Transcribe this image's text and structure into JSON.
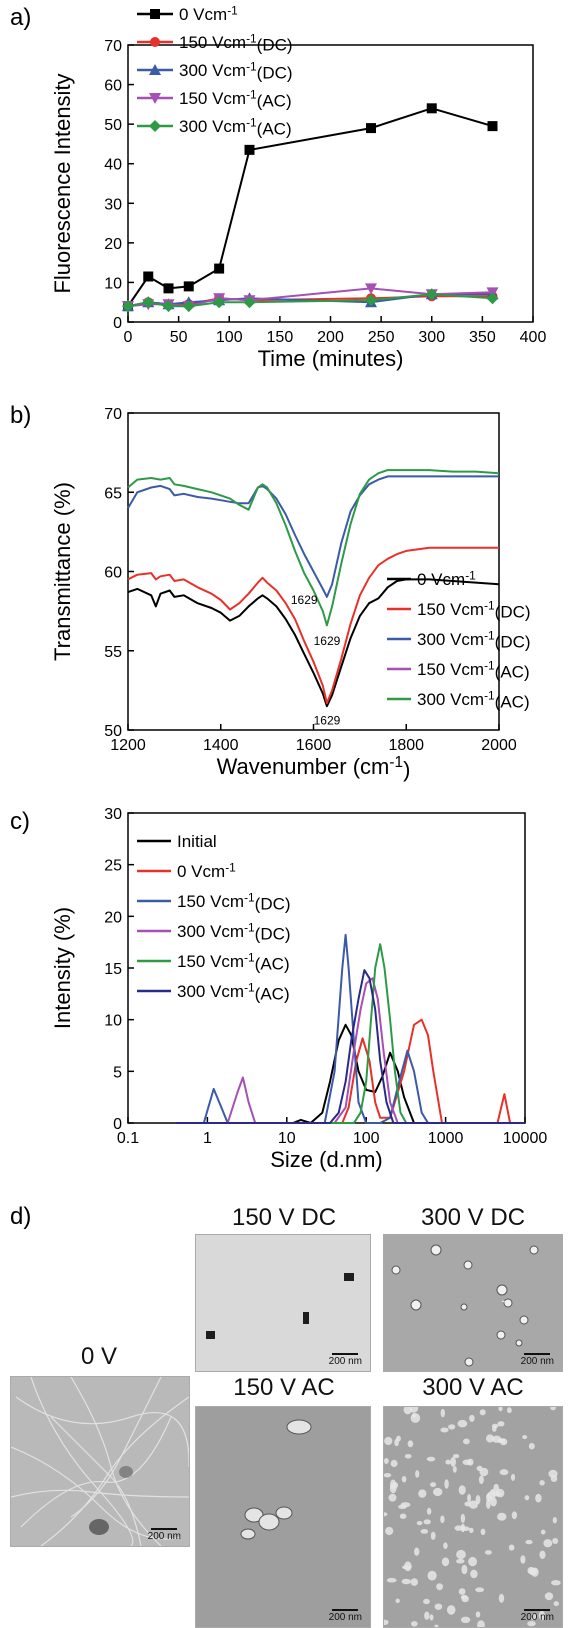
{
  "panel_labels": [
    "a)",
    "b)",
    "c)",
    "d)"
  ],
  "chart_data": [
    {
      "type": "line",
      "xlabel": "Time (minutes)",
      "ylabel": "Fluorescence Intensity",
      "xlim": [
        0,
        400
      ],
      "ylim": [
        0,
        70
      ],
      "xticks": [
        "0",
        "50",
        "100",
        "150",
        "200",
        "250",
        "300",
        "350",
        "400"
      ],
      "yticks": [
        "0",
        "10",
        "20",
        "30",
        "40",
        "50",
        "60",
        "70"
      ],
      "legend_position": "top-left",
      "series": [
        {
          "name": "0 Vcm-1",
          "color": "#000000",
          "marker": "square",
          "x": [
            0,
            20,
            40,
            60,
            90,
            120,
            240,
            300,
            360
          ],
          "y": [
            4,
            11.5,
            8.5,
            9,
            13.5,
            43.5,
            49,
            54,
            49.5
          ]
        },
        {
          "name": "150 Vcm-1(DC)",
          "color": "#e8312a",
          "marker": "circle",
          "x": [
            0,
            20,
            40,
            60,
            90,
            120,
            240,
            300,
            360
          ],
          "y": [
            4,
            5,
            4.5,
            4.5,
            6,
            5.5,
            6,
            6.5,
            6.5
          ]
        },
        {
          "name": "300 Vcm-1(DC)",
          "color": "#3b5aa8",
          "marker": "triangle-up",
          "x": [
            0,
            20,
            40,
            60,
            90,
            120,
            240,
            300,
            360
          ],
          "y": [
            4,
            5,
            4.5,
            5,
            5.5,
            6,
            5,
            7,
            7
          ]
        },
        {
          "name": "150 Vcm-1(AC)",
          "color": "#a64fb4",
          "marker": "triangle-down",
          "x": [
            0,
            20,
            40,
            60,
            90,
            120,
            240,
            300,
            360
          ],
          "y": [
            4,
            4.5,
            4.5,
            4,
            6,
            5.5,
            8.5,
            7,
            7.5
          ]
        },
        {
          "name": "300 Vcm-1(AC)",
          "color": "#2e9a46",
          "marker": "diamond",
          "x": [
            0,
            20,
            40,
            60,
            90,
            120,
            240,
            300,
            360
          ],
          "y": [
            4,
            5,
            4,
            4,
            5,
            5,
            5.5,
            7,
            6
          ]
        }
      ]
    },
    {
      "type": "line",
      "xlabel": "Wavenumber (cm-1)",
      "ylabel": "Transmittance (%)",
      "xlim": [
        1200,
        2000
      ],
      "ylim": [
        50,
        70
      ],
      "xticks": [
        "1200",
        "1400",
        "1600",
        "1800",
        "2000"
      ],
      "yticks": [
        "50",
        "55",
        "60",
        "65",
        "70"
      ],
      "legend_position": "bottom-right",
      "annotations": [
        {
          "text": "1629",
          "x": 1580,
          "y": 58.2
        },
        {
          "text": "1629",
          "x": 1629,
          "y": 55.6
        },
        {
          "text": "1629",
          "x": 1629,
          "y": 50.6
        }
      ],
      "series": [
        {
          "name": "0 Vcm-1",
          "color": "#000000",
          "x": [
            1200,
            1220,
            1250,
            1260,
            1270,
            1290,
            1300,
            1320,
            1350,
            1380,
            1400,
            1420,
            1440,
            1460,
            1480,
            1490,
            1500,
            1520,
            1540,
            1560,
            1580,
            1600,
            1620,
            1629,
            1640,
            1660,
            1680,
            1700,
            1720,
            1740,
            1760,
            1780,
            1800,
            1850,
            1900,
            1950,
            2000
          ],
          "y": [
            58.7,
            58.9,
            58.5,
            57.8,
            58.6,
            58.8,
            58.4,
            58.5,
            58.0,
            57.7,
            57.4,
            56.9,
            57.2,
            57.8,
            58.3,
            58.5,
            58.3,
            57.8,
            57.0,
            56.0,
            54.8,
            53.6,
            52.3,
            51.5,
            52.2,
            54.0,
            55.8,
            57.2,
            58.0,
            58.3,
            59.0,
            59.4,
            59.5,
            59.5,
            59.4,
            59.3,
            59.2
          ]
        },
        {
          "name": "150 Vcm-1(DC)",
          "color": "#e8312a",
          "x": [
            1200,
            1220,
            1250,
            1260,
            1270,
            1290,
            1300,
            1320,
            1350,
            1380,
            1400,
            1420,
            1440,
            1460,
            1480,
            1490,
            1500,
            1520,
            1540,
            1560,
            1580,
            1600,
            1620,
            1629,
            1640,
            1660,
            1680,
            1700,
            1720,
            1740,
            1760,
            1780,
            1800,
            1850,
            1900,
            1950,
            2000
          ],
          "y": [
            59.5,
            59.8,
            59.9,
            59.5,
            59.7,
            59.8,
            59.4,
            59.5,
            59.0,
            58.6,
            58.2,
            57.6,
            58.0,
            58.6,
            59.3,
            59.6,
            59.3,
            58.8,
            58.0,
            57.0,
            55.6,
            54.3,
            52.8,
            51.7,
            52.5,
            54.5,
            56.7,
            58.5,
            59.6,
            60.4,
            60.8,
            61.1,
            61.3,
            61.5,
            61.5,
            61.5,
            61.5
          ]
        },
        {
          "name": "300 Vcm-1(DC)",
          "color": "#3b5aa8",
          "x": [
            1200,
            1220,
            1250,
            1270,
            1290,
            1300,
            1320,
            1350,
            1380,
            1400,
            1420,
            1440,
            1460,
            1480,
            1490,
            1500,
            1520,
            1540,
            1560,
            1580,
            1600,
            1620,
            1629,
            1640,
            1660,
            1680,
            1700,
            1720,
            1740,
            1760,
            1800,
            1850,
            1900,
            1950,
            2000
          ],
          "y": [
            64.0,
            65.0,
            65.3,
            65.4,
            65.2,
            64.8,
            64.9,
            64.7,
            64.6,
            64.5,
            64.4,
            64.3,
            64.3,
            65.3,
            65.4,
            65.2,
            64.6,
            63.6,
            62.3,
            61.1,
            60.0,
            58.9,
            58.4,
            59.2,
            61.8,
            63.8,
            64.8,
            65.5,
            65.8,
            66.0,
            66.0,
            66.0,
            66.0,
            66.0,
            66.0
          ]
        },
        {
          "name": "150 Vcm-1(AC)",
          "color": "#a64fb4",
          "x": [],
          "y": []
        },
        {
          "name": "300 Vcm-1(AC)",
          "color": "#2e9a46",
          "x": [
            1200,
            1220,
            1250,
            1270,
            1290,
            1300,
            1320,
            1350,
            1380,
            1400,
            1420,
            1440,
            1460,
            1480,
            1490,
            1500,
            1520,
            1540,
            1560,
            1580,
            1600,
            1620,
            1629,
            1640,
            1660,
            1680,
            1700,
            1720,
            1740,
            1760,
            1800,
            1850,
            1900,
            1950,
            2000
          ],
          "y": [
            65.3,
            65.8,
            65.9,
            65.8,
            65.9,
            65.5,
            65.4,
            65.2,
            65.0,
            64.8,
            64.6,
            64.2,
            63.9,
            65.3,
            65.5,
            65.3,
            64.3,
            62.9,
            61.3,
            59.9,
            58.8,
            57.5,
            56.6,
            57.8,
            60.5,
            63.0,
            64.9,
            65.8,
            66.2,
            66.4,
            66.4,
            66.4,
            66.3,
            66.3,
            66.2
          ]
        }
      ]
    },
    {
      "type": "line",
      "xlabel": "Size (d.nm)",
      "ylabel": "Intensity (%)",
      "xscale": "log",
      "xlim": [
        0.1,
        10000
      ],
      "ylim": [
        0,
        30
      ],
      "xticks": [
        "0.1",
        "1",
        "10",
        "100",
        "1000",
        "10000"
      ],
      "yticks": [
        "0",
        "5",
        "10",
        "15",
        "20",
        "25",
        "30"
      ],
      "legend_position": "top-left",
      "series": [
        {
          "name": "Initial",
          "color": "#000000",
          "x": [
            0.4,
            12,
            15,
            20,
            28,
            35,
            45,
            55,
            65,
            80,
            100,
            130,
            160,
            200,
            250,
            300,
            400,
            600,
            10000
          ],
          "y": [
            0,
            0,
            0.3,
            0,
            1,
            4,
            8,
            9.5,
            8.5,
            5,
            3.2,
            3,
            4.5,
            6.8,
            5,
            2.5,
            0,
            0,
            0
          ]
        },
        {
          "name": "0 Vcm-1",
          "color": "#e8312a",
          "x": [
            0.4,
            40,
            50,
            60,
            75,
            90,
            110,
            130,
            150,
            200,
            300,
            400,
            500,
            600,
            700,
            900,
            4500,
            5500,
            6500,
            10000
          ],
          "y": [
            0,
            0,
            0,
            1.5,
            6,
            8.2,
            6,
            2,
            0.5,
            0.5,
            5,
            9.5,
            10,
            8.5,
            5,
            0,
            0,
            2.8,
            0,
            0
          ]
        },
        {
          "name": "150 Vcm-1(DC)",
          "color": "#3b5aa8",
          "x": [
            0.4,
            0.9,
            1.2,
            1.5,
            1.8,
            30,
            40,
            50,
            55,
            60,
            70,
            80,
            100,
            150,
            200,
            260,
            330,
            400,
            500,
            600,
            10000
          ],
          "y": [
            0,
            0,
            3.3,
            1.5,
            0,
            0,
            5,
            15,
            18.2,
            15,
            8,
            2,
            0,
            0,
            0.5,
            4,
            7,
            5,
            1,
            0,
            0
          ]
        },
        {
          "name": "300 Vcm-1(DC)",
          "color": "#a64fb4",
          "x": [
            0.4,
            1.8,
            2.4,
            2.8,
            3.3,
            4,
            40,
            55,
            70,
            85,
            100,
            120,
            140,
            165,
            200,
            250,
            10000
          ],
          "y": [
            0,
            0,
            3,
            4.4,
            2,
            0,
            0,
            1.5,
            7,
            11,
            13.5,
            14,
            12,
            7,
            2,
            0,
            0
          ]
        },
        {
          "name": "150 Vcm-1(AC)",
          "color": "#2e9a46",
          "x": [
            0.4,
            70,
            85,
            100,
            115,
            130,
            150,
            170,
            200,
            230,
            270,
            320,
            10000
          ],
          "y": [
            0,
            0,
            1,
            4,
            10,
            15,
            17.3,
            15,
            10,
            5,
            1,
            0,
            0
          ]
        },
        {
          "name": "300 Vcm-1(AC)",
          "color": "#2a2a8a",
          "x": [
            0.4,
            35,
            45,
            55,
            65,
            80,
            95,
            110,
            130,
            150,
            180,
            220,
            10000
          ],
          "y": [
            0,
            0,
            1,
            4,
            8,
            12,
            14.8,
            14,
            11,
            6,
            2,
            0,
            0
          ]
        }
      ]
    }
  ],
  "tem_panel": {
    "scale_label": "200 nm",
    "images": [
      {
        "title": "0 V"
      },
      {
        "title": "150 V DC"
      },
      {
        "title": "300 V DC"
      },
      {
        "title": "150 V AC"
      },
      {
        "title": "300 V AC"
      }
    ]
  }
}
